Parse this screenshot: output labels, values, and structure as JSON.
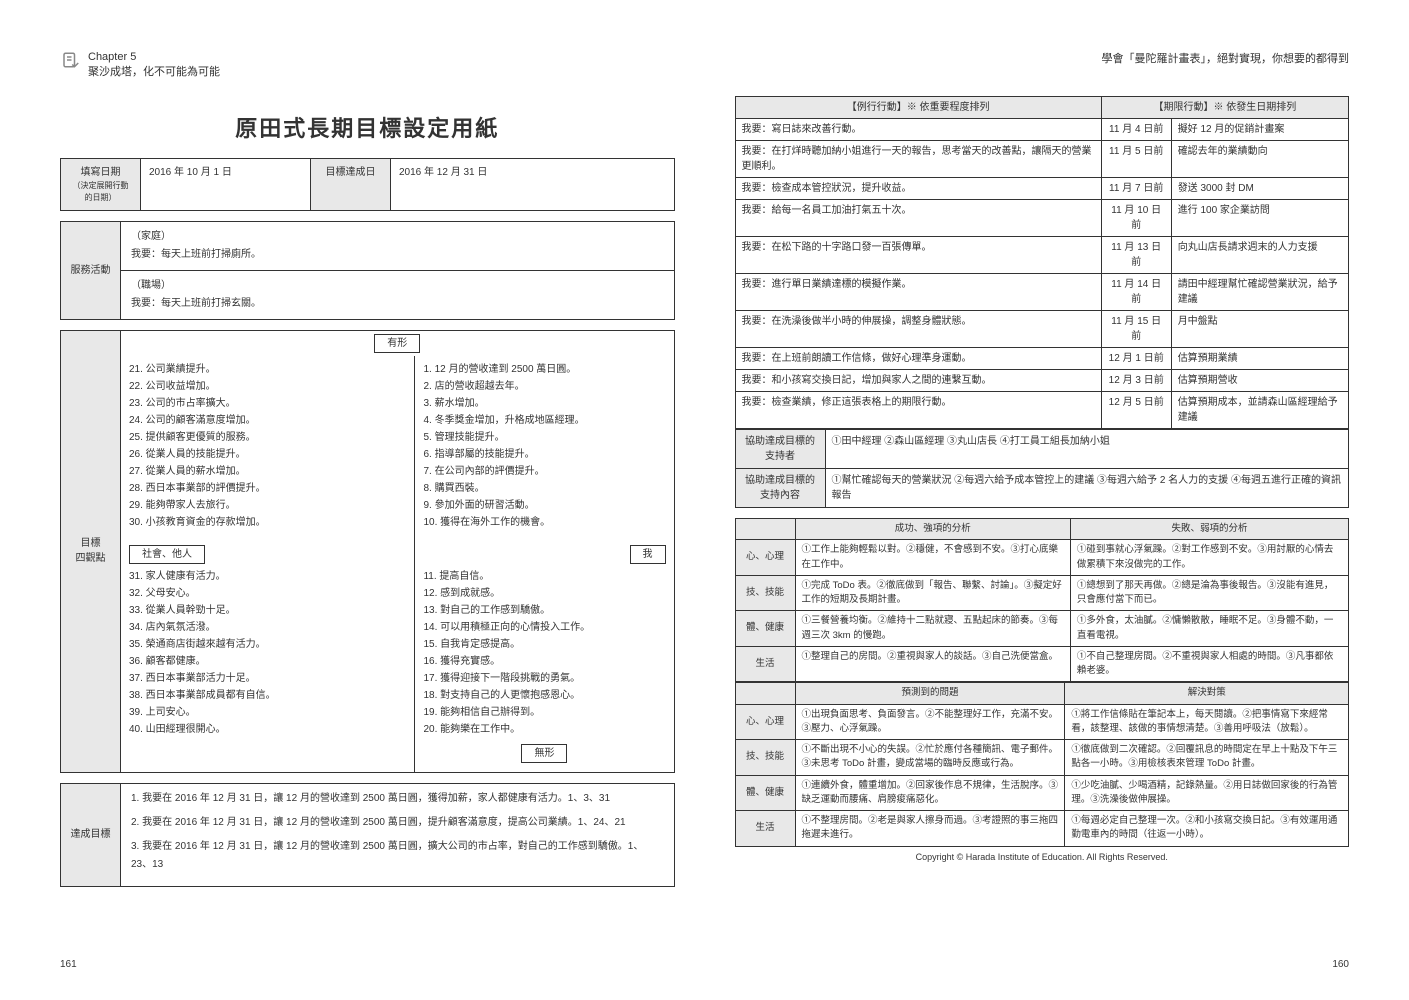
{
  "chapter": {
    "num": "Chapter 5",
    "title": "聚沙成塔，化不可能為可能"
  },
  "rightHeader": "學會「曼陀羅計畫表」，絕對實現，你想要的都得到",
  "mainTitle": "原田式長期目標設定用紙",
  "dateRow": {
    "label1": "填寫日期",
    "label1sub": "（決定展開行動的日期）",
    "date1": "2016 年 10 月 1 日",
    "label2": "目標達成日",
    "date2": "2016 年 12 月 31 日"
  },
  "service": {
    "label": "服務活動",
    "home": "（家庭）\n我要：每天上班前打掃廁所。",
    "work": "（職場）\n我要：每天上班前打掃玄關。"
  },
  "fourViews": {
    "label": "目標\n四觀點",
    "tagTangible": "有形",
    "tagIntangible": "無形",
    "tagSocial": "社會、他人",
    "tagSelf": "我",
    "colA": [
      "21. 公司業績提升。",
      "22. 公司收益增加。",
      "23. 公司的市占率擴大。",
      "24. 公司的顧客滿意度增加。",
      "25. 提供顧客更優質的服務。",
      "26. 從業人員的技能提升。",
      "27. 從業人員的薪水增加。",
      "28. 西日本事業部的評價提升。",
      "29. 能夠帶家人去旅行。",
      "30. 小孩教育資金的存款增加。"
    ],
    "colB": [
      "1. 12 月的營收達到 2500 萬日圓。",
      "2. 店的營收超越去年。",
      "3. 薪水增加。",
      "4. 冬季獎金增加，升格成地區經理。",
      "5. 管理技能提升。",
      "6. 指導部屬的技能提升。",
      "7. 在公司內部的評價提升。",
      "8. 購買西裝。",
      "9. 參加外面的研習活動。",
      "10. 獲得在海外工作的機會。"
    ],
    "colC": [
      "31. 家人健康有活力。",
      "32. 父母安心。",
      "33. 從業人員幹勁十足。",
      "34. 店內氣氛活潑。",
      "35. 榮通商店街越來越有活力。",
      "36. 顧客都健康。",
      "37. 西日本事業部活力十足。",
      "38. 西日本事業部成員都有自信。",
      "39. 上司安心。",
      "40. 山田經理很開心。"
    ],
    "colD": [
      "11. 提高自信。",
      "12. 感到成就感。",
      "13. 對自己的工作感到驕傲。",
      "14. 可以用積極正向的心情投入工作。",
      "15. 自我肯定感提高。",
      "16. 獲得充實感。",
      "17. 獲得迎接下一階段挑戰的勇氣。",
      "18. 對支持自己的人更懷抱感恩心。",
      "19. 能夠相信自己辦得到。",
      "20. 能夠樂在工作中。"
    ]
  },
  "achieve": {
    "label": "達成目標",
    "items": [
      "1. 我要在 2016 年 12 月 31 日，讓 12 月的營收達到 2500 萬日圓，獲得加薪，家人都健康有活力。1、3、31",
      "2. 我要在 2016 年 12 月 31 日，讓 12 月的營收達到 2500 萬日圓，提升顧客滿意度，提高公司業績。1、24、21",
      "3. 我要在 2016 年 12 月 31 日，讓 12 月的營收達到 2500 萬日圓，擴大公司的市占率，對自己的工作感到驕傲。1、23、13"
    ]
  },
  "actions": {
    "headerLeft": "【例行行動】※ 依重要程度排列",
    "headerRight": "【期限行動】※ 依發生日期排列",
    "rows": [
      {
        "l": "我要：寫日誌來改善行動。",
        "d": "11 月 4 日前",
        "r": "擬好 12 月的促銷計畫案"
      },
      {
        "l": "我要：在打烊時聽加納小姐進行一天的報告，思考當天的改善點，讓隔天的營業更順利。",
        "d": "11 月 5 日前",
        "r": "確認去年的業績動向"
      },
      {
        "l": "我要：檢查成本管控狀況，提升收益。",
        "d": "11 月 7 日前",
        "r": "發送 3000 封 DM"
      },
      {
        "l": "我要：給每一名員工加油打氣五十次。",
        "d": "11 月 10 日前",
        "r": "進行 100 家企業訪問"
      },
      {
        "l": "我要：在松下路的十字路口發一百張傳單。",
        "d": "11 月 13 日前",
        "r": "向丸山店長請求週末的人力支援"
      },
      {
        "l": "我要：進行單日業績達標的模擬作業。",
        "d": "11 月 14 日前",
        "r": "請田中經理幫忙確認營業狀況，給予建議"
      },
      {
        "l": "我要：在洗澡後做半小時的伸展操，調整身體狀態。",
        "d": "11 月 15 日前",
        "r": "月中盤點"
      },
      {
        "l": "我要：在上班前朗讀工作信條，做好心理準身運動。",
        "d": "12 月 1 日前",
        "r": "估算預期業績"
      },
      {
        "l": "我要：和小孩寫交換日記，增加與家人之間的連繫互動。",
        "d": "12 月 3 日前",
        "r": "估算預期營收"
      },
      {
        "l": "我要：檢查業績，修正這張表格上的期限行動。",
        "d": "12 月 5 日前",
        "r": "估算預期成本，並請森山區經理給予建議"
      }
    ]
  },
  "support": {
    "label1": "協助達成目標的支持者",
    "val1": "①田中經理 ②森山區經理 ③丸山店長 ④打工員工組長加納小姐",
    "label2": "協助達成目標的支持內容",
    "val2": "①幫忙確認每天的營業狀況 ②每週六給予成本管控上的建議 ③每週六給予 2 名人力的支援 ④每週五進行正確的資訊報告"
  },
  "analysis": {
    "h1": "成功、強項的分析",
    "h2": "失敗、弱項的分析",
    "h3": "預測到的問題",
    "h4": "解決對策",
    "rows1": [
      {
        "c": "心、心理",
        "a": "①工作上能夠輕鬆以對。②穩健，不會感到不安。③打心底樂在工作中。",
        "b": "①碰到事就心浮氣躁。②對工作感到不安。③用討厭的心情去做累積下來沒做完的工作。"
      },
      {
        "c": "技、技能",
        "a": "①完成 ToDo 表。②徹底做到「報告、聯繫、討論」。③擬定好工作的短期及長期計畫。",
        "b": "①總想到了那天再做。②總是淪為事後報告。③沒能有進見，只會應付當下而已。"
      },
      {
        "c": "體、健康",
        "a": "①三餐營養均衡。②維持十二點就寢、五點起床的節奏。③每週三次 3km 的慢跑。",
        "b": "①多外食，太油膩。②慵懶散散，睡眠不足。③身體不動，一直看電視。"
      },
      {
        "c": "生活",
        "a": "①整理自己的房間。②重視與家人的談話。③自己洗便當盒。",
        "b": "①不自己整理房間。②不重視與家人相處的時間。③凡事都依賴老婆。"
      }
    ],
    "rows2": [
      {
        "c": "心、心理",
        "a": "①出現負面思考、負面發言。②不能整理好工作，充滿不安。③壓力、心浮氣躁。",
        "b": "①將工作信條貼在筆記本上，每天閱讀。②把事情寫下來經常看，該整理、該做的事情想清楚。③善用呼吸法（放鬆）。"
      },
      {
        "c": "技、技能",
        "a": "①不斷出現不小心的失誤。②忙於應付各種簡訊、電子郵件。③未思考 ToDo 計畫，變成當場的臨時反應或行為。",
        "b": "①徹底做到二次確認。②回覆訊息的時間定在早上十點及下午三點各一小時。③用檢核表來管理 ToDo 計畫。"
      },
      {
        "c": "體、健康",
        "a": "①連續外食，體重增加。②回家後作息不規律，生活脫序。③缺乏運動而腰痛、肩膀痠痛惡化。",
        "b": "①少吃油膩、少喝酒精，記錄熱量。②用日誌做回家後的行為管理。③洗澡後做伸展操。"
      },
      {
        "c": "生活",
        "a": "①不整理房間。②老是與家人擦身而過。③考證照的事三拖四拖遲未進行。",
        "b": "①每週必定自己整理一次。②和小孩寫交換日記。③有效運用通勤電車內的時間（往返一小時）。"
      }
    ]
  },
  "copyright": "Copyright © Harada Institute of Education. All Rights Reserved.",
  "pageLeft": "161",
  "pageRight": "160"
}
